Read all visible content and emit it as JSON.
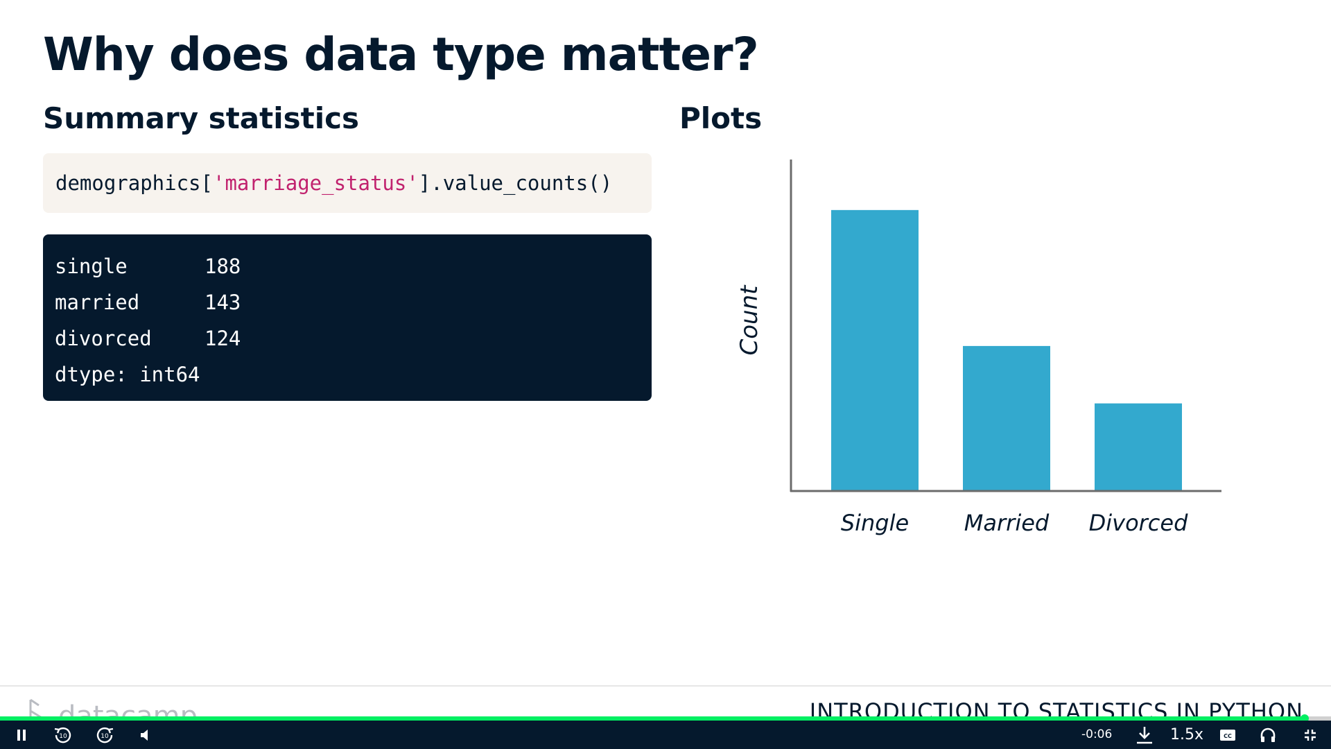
{
  "slide": {
    "title": "Why does data type matter?",
    "left_heading": "Summary statistics",
    "right_heading": "Plots",
    "code_input": {
      "prefix": "demographics[",
      "string": "'marriage_status'",
      "suffix": "].value_counts()"
    },
    "code_output": [
      {
        "label": "single",
        "value": "188"
      },
      {
        "label": "married",
        "value": "143"
      },
      {
        "label": "divorced",
        "value": "124"
      },
      {
        "label": "dtype: int64",
        "value": ""
      }
    ]
  },
  "chart_data": {
    "type": "bar",
    "categories": [
      "Single",
      "Married",
      "Divorced"
    ],
    "values": [
      188,
      143,
      124
    ],
    "title": "",
    "xlabel": "",
    "ylabel": "Count",
    "ylim": [
      95,
      196
    ],
    "grid": false,
    "legend": "none",
    "bar_color": "#33a9ce"
  },
  "footer": {
    "logo_text": "datacamp",
    "course_title": "INTRODUCTION TO STATISTICS IN PYTHON"
  },
  "player": {
    "progress": 0.98,
    "time_remaining": "-0:06",
    "speed": "1.5x",
    "icons": [
      "pause-icon",
      "rewind-10-icon",
      "forward-10-icon",
      "volume-icon",
      "download-icon",
      "captions-icon",
      "headphones-icon",
      "exit-fullscreen-icon"
    ],
    "accent_color": "#03ef62"
  }
}
